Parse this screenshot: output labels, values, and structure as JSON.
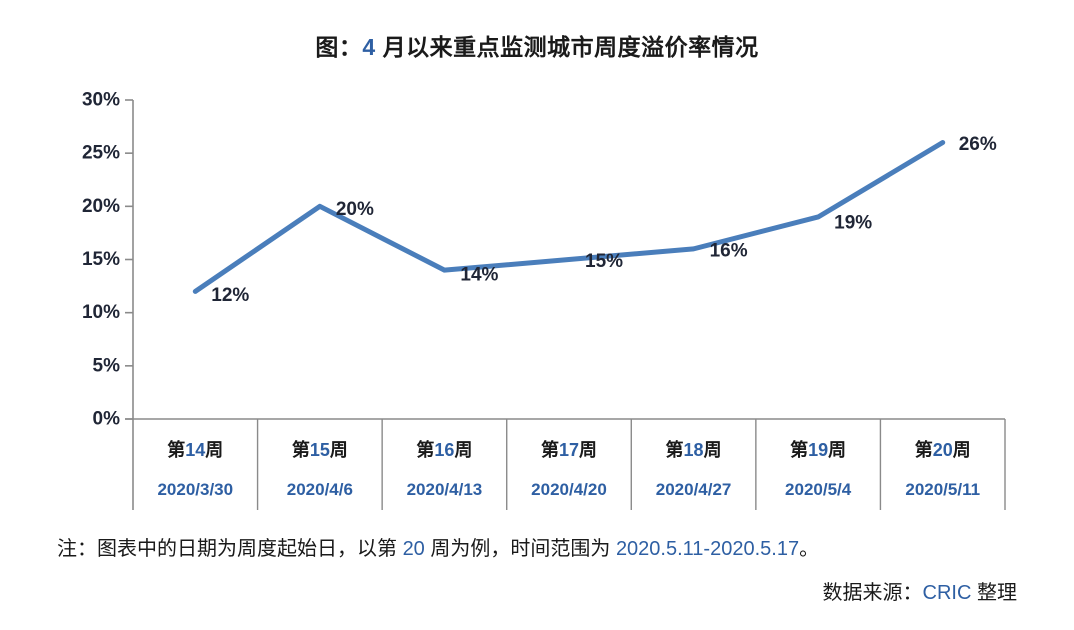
{
  "colors": {
    "accent_blue": "#2E5FA3",
    "text_black": "#1a1a1a",
    "label_navy": "#202636",
    "line_blue": "#4A7EBB",
    "axis_gray": "#8a8a8a",
    "background": "#ffffff"
  },
  "title": {
    "parts": [
      {
        "text": "图：",
        "color": "black"
      },
      {
        "text": "4",
        "color": "blue"
      },
      {
        "text": " 月以来重点监测城市周度溢价率情况",
        "color": "black"
      }
    ]
  },
  "chart_data": {
    "type": "line",
    "title": "图：4 月以来重点监测城市周度溢价率情况",
    "categories": [
      "第14周",
      "第15周",
      "第16周",
      "第17周",
      "第18周",
      "第19周",
      "第20周"
    ],
    "category_dates": [
      "2020/3/30",
      "2020/4/6",
      "2020/4/13",
      "2020/4/20",
      "2020/4/27",
      "2020/5/4",
      "2020/5/11"
    ],
    "values": [
      12,
      20,
      14,
      15,
      16,
      19,
      26
    ],
    "data_labels": [
      "12%",
      "20%",
      "14%",
      "15%",
      "16%",
      "19%",
      "26%"
    ],
    "y_ticks": [
      "30%",
      "25%",
      "20%",
      "15%",
      "10%",
      "5%",
      "0%"
    ],
    "ylim": [
      0,
      30
    ],
    "grid": false,
    "legend": "none",
    "xlabel": "",
    "ylabel": ""
  },
  "note": {
    "parts": [
      {
        "text": "注：图表中的日期为周度起始日，以第 ",
        "color": "black"
      },
      {
        "text": "20",
        "color": "blue"
      },
      {
        "text": " 周为例，时间范围为 ",
        "color": "black"
      },
      {
        "text": "2020.5.11-2020.5.17",
        "color": "blue"
      },
      {
        "text": "。",
        "color": "black"
      }
    ]
  },
  "source": {
    "parts": [
      {
        "text": "数据来源：",
        "color": "black"
      },
      {
        "text": "CRIC",
        "color": "blue"
      },
      {
        "text": " 整理",
        "color": "black"
      }
    ]
  }
}
